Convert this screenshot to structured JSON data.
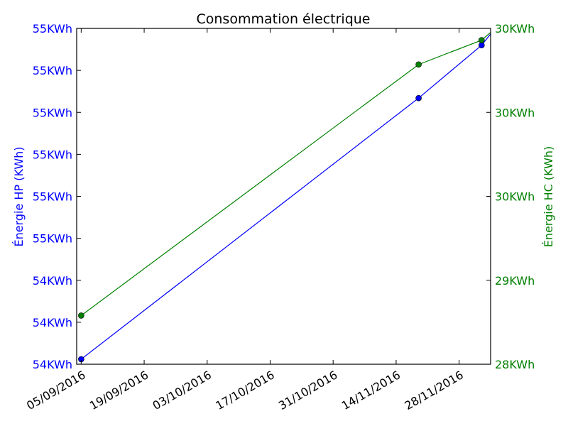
{
  "chart_data": {
    "type": "line",
    "title": "Consommation électrique",
    "xlabel": "",
    "x_ticks": [
      "05/09/2016",
      "19/09/2016",
      "03/10/2016",
      "17/10/2016",
      "31/10/2016",
      "14/11/2016",
      "28/11/2016"
    ],
    "x_tick_days": [
      0,
      14,
      28,
      42,
      56,
      70,
      84
    ],
    "xlim_days": [
      -1,
      91
    ],
    "x": [
      "04/09/2016",
      "19/11/2016",
      "02/12/2016",
      "05/12/2016"
    ],
    "x_days": [
      0,
      75,
      89,
      92
    ],
    "y_left": {
      "label": "Énergie HP (KWh)",
      "color": "#0000ff",
      "ticks": [
        "54KWh",
        "54KWh",
        "54KWh",
        "55KWh",
        "55KWh",
        "55KWh",
        "55KWh",
        "55KWh",
        "55KWh"
      ],
      "ylim": [
        0,
        8
      ]
    },
    "y_right": {
      "label": "Énergie HC (KWh)",
      "color": "#008000",
      "ticks": [
        "28KWh",
        "29KWh",
        "30KWh",
        "30KWh",
        "30KWh"
      ],
      "ylim": [
        0,
        4
      ]
    },
    "series": [
      {
        "axis": "left",
        "color": "#0000ff",
        "values": [
          0.12,
          6.34,
          7.6,
          8.0
        ]
      },
      {
        "axis": "right",
        "color": "#008000",
        "values": [
          0.58,
          3.57,
          3.86,
          4.0
        ]
      }
    ],
    "grid": false
  }
}
